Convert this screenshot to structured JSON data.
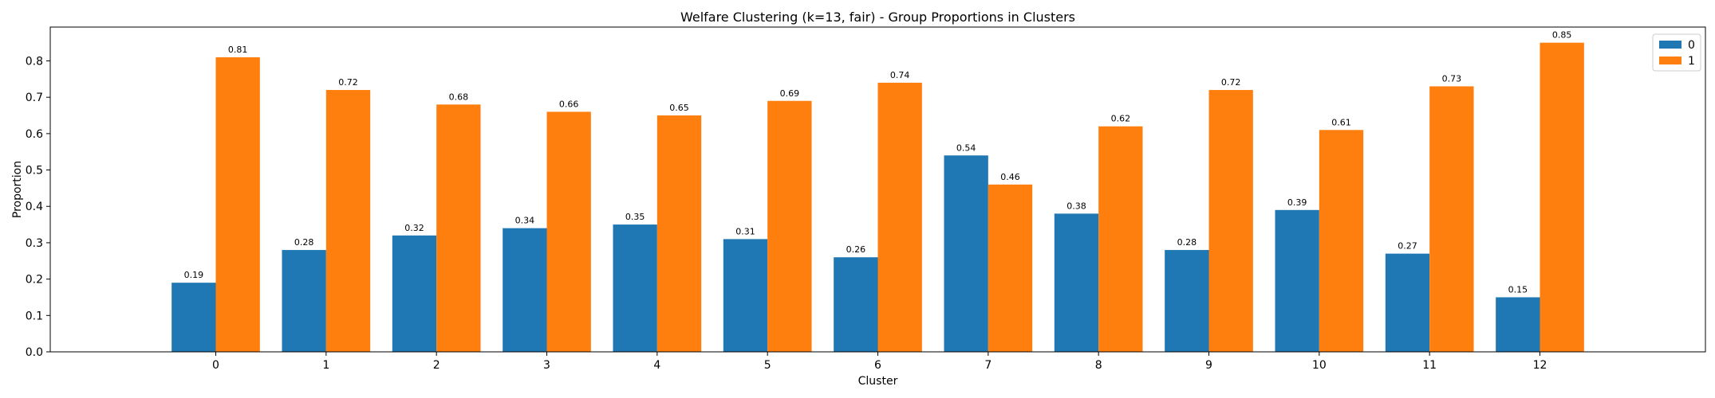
{
  "chart_data": {
    "type": "bar",
    "title": "Welfare Clustering (k=13, fair) - Group Proportions in Clusters",
    "xlabel": "Cluster",
    "ylabel": "Proportion",
    "categories": [
      "0",
      "1",
      "2",
      "3",
      "4",
      "5",
      "6",
      "7",
      "8",
      "9",
      "10",
      "11",
      "12"
    ],
    "series": [
      {
        "name": "0",
        "color": "#1f77b4",
        "values": [
          0.19,
          0.28,
          0.32,
          0.34,
          0.35,
          0.31,
          0.26,
          0.54,
          0.38,
          0.28,
          0.39,
          0.27,
          0.15
        ]
      },
      {
        "name": "1",
        "color": "#ff7f0e",
        "values": [
          0.81,
          0.72,
          0.68,
          0.66,
          0.65,
          0.69,
          0.74,
          0.46,
          0.62,
          0.72,
          0.61,
          0.73,
          0.85
        ]
      }
    ],
    "ylim": [
      0,
      0.893
    ],
    "yticks": [
      "0.0",
      "0.1",
      "0.2",
      "0.3",
      "0.4",
      "0.5",
      "0.6",
      "0.7",
      "0.8"
    ],
    "legend_position": "top-right",
    "grid": false
  }
}
